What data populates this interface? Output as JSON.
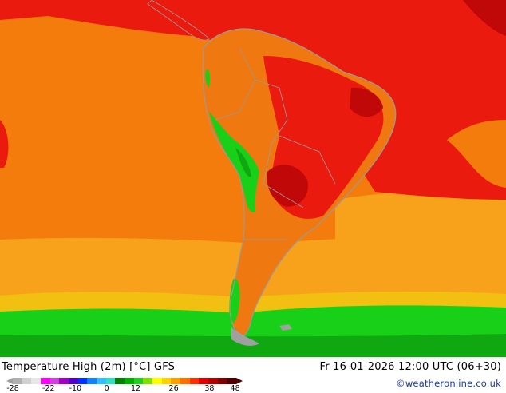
{
  "footer": {
    "title": "Temperature High (2m) [°C] GFS",
    "valid_time": "Fr 16-01-2026 12:00 UTC (06+30)",
    "credit": "©weatheronline.co.uk"
  },
  "legend": {
    "ticks": [
      "-28",
      "-22",
      "-10",
      "0",
      "12",
      "26",
      "38",
      "48"
    ],
    "colors": [
      "#b0b0b0",
      "#d0d0d0",
      "#e6e6e6",
      "#ff00ff",
      "#d040e0",
      "#a000c0",
      "#5000c8",
      "#0030ff",
      "#1080ff",
      "#30c0ff",
      "#30e0c0",
      "#008000",
      "#00b000",
      "#20d020",
      "#80e000",
      "#ffff00",
      "#ffd000",
      "#ffa000",
      "#ff7000",
      "#ff3000",
      "#e00000",
      "#b00000",
      "#800000",
      "#500000"
    ]
  },
  "map": {
    "colors": {
      "ocean_orange": "#f47c0c",
      "ocean_light": "#f8a21c",
      "hot_red": "#ea1a0e",
      "deep_red": "#c00808",
      "land_orange": "#f07810",
      "green": "#18d018",
      "dark_green": "#10a810",
      "yellow": "#f2c010",
      "border": "#9a9a9a"
    }
  }
}
